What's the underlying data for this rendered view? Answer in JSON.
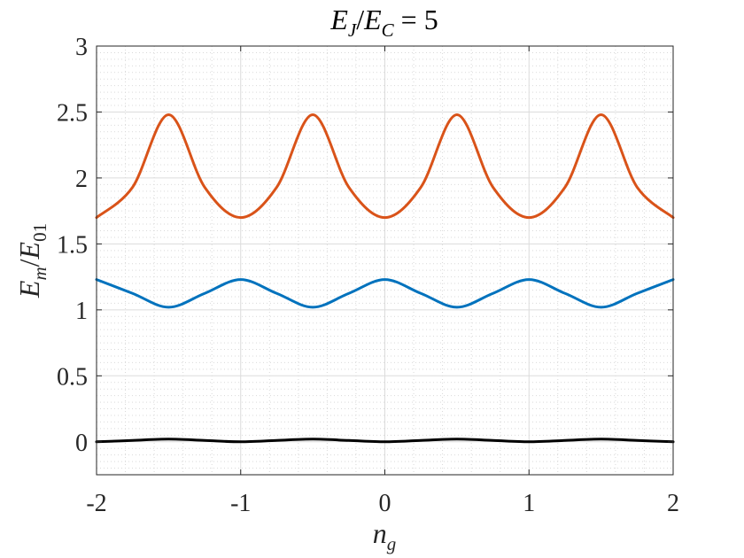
{
  "chart_data": {
    "type": "line",
    "title_parts": {
      "main": "E",
      "sub1": "J",
      "slash": "/",
      "main2": "E",
      "sub2": "C",
      "rest": " = 5"
    },
    "xlabel_parts": {
      "main": "n",
      "sub": "g"
    },
    "ylabel_parts": {
      "main": "E",
      "sub1": "m",
      "slash": "/",
      "main2": "E",
      "sub2": "01"
    },
    "xlim": [
      -2,
      2
    ],
    "ylim": [
      -0.25,
      3
    ],
    "xticks": [
      -2,
      -1,
      0,
      1,
      2
    ],
    "xtick_labels": [
      "-2",
      "-1",
      "0",
      "1",
      "2"
    ],
    "yticks": [
      0,
      0.5,
      1,
      1.5,
      2,
      2.5,
      3
    ],
    "ytick_labels": [
      "0",
      "0.5",
      "1",
      "1.5",
      "2",
      "2.5",
      "3"
    ],
    "grid": true,
    "minor_grid": true,
    "series": [
      {
        "color": "#000000",
        "x": [
          -2,
          -1.75,
          -1.5,
          -1.25,
          -1,
          -0.75,
          -0.5,
          -0.25,
          0,
          0.25,
          0.5,
          0.75,
          1,
          1.25,
          1.5,
          1.75,
          2
        ],
        "y": [
          0,
          0.01,
          0.02,
          0.01,
          0,
          0.01,
          0.02,
          0.01,
          0,
          0.01,
          0.02,
          0.01,
          0,
          0.01,
          0.02,
          0.01,
          0
        ]
      },
      {
        "color": "#0072BD",
        "x": [
          -2,
          -1.75,
          -1.5,
          -1.25,
          -1,
          -0.75,
          -0.5,
          -0.25,
          0,
          0.25,
          0.5,
          0.75,
          1,
          1.25,
          1.5,
          1.75,
          2
        ],
        "y": [
          1.23,
          1.125,
          1.02,
          1.125,
          1.23,
          1.125,
          1.02,
          1.125,
          1.23,
          1.125,
          1.02,
          1.125,
          1.23,
          1.125,
          1.02,
          1.125,
          1.23
        ]
      },
      {
        "color": "#D95319",
        "x": [
          -2,
          -1.75,
          -1.5,
          -1.25,
          -1,
          -0.75,
          -0.5,
          -0.25,
          0,
          0.25,
          0.5,
          0.75,
          1,
          1.25,
          1.5,
          1.75,
          2
        ],
        "y": [
          1.7,
          1.93,
          2.48,
          1.93,
          1.7,
          1.93,
          2.48,
          1.93,
          1.7,
          1.93,
          2.48,
          1.93,
          1.7,
          1.93,
          2.48,
          1.93,
          1.7
        ]
      }
    ]
  }
}
